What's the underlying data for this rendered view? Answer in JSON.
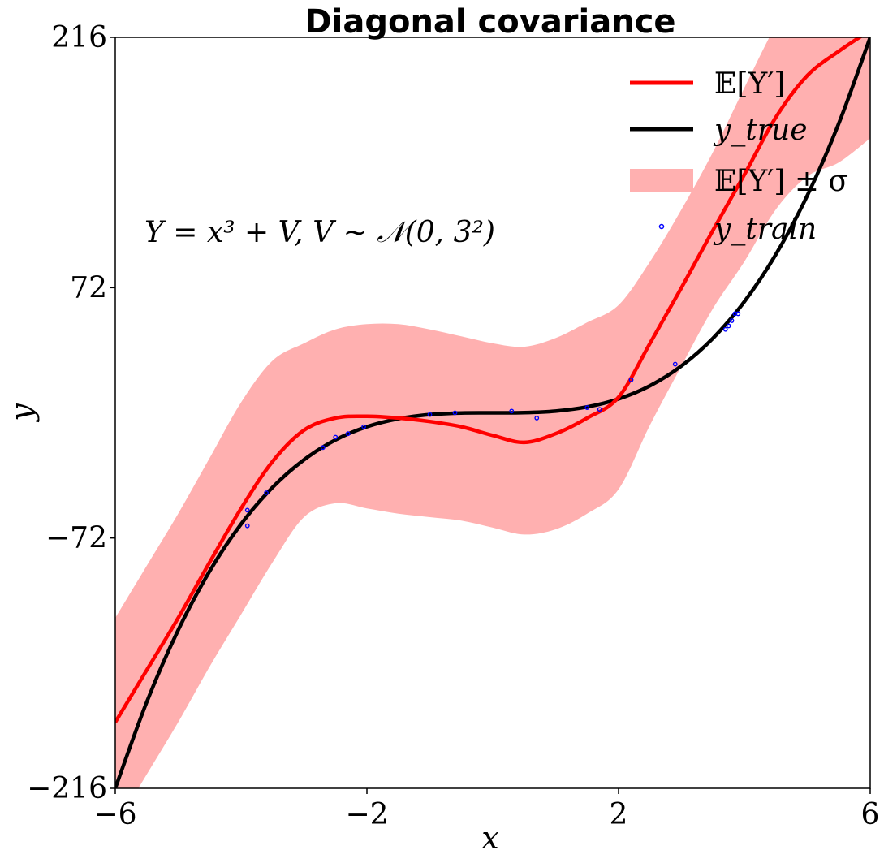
{
  "chart_data": {
    "type": "line",
    "title": "Diagonal covariance",
    "xlabel": "x",
    "ylabel": "y",
    "xlim": [
      -6,
      6
    ],
    "ylim": [
      -216,
      216
    ],
    "xticks": [
      -6,
      -2,
      2,
      6
    ],
    "xtick_labels": [
      "−6",
      "−2",
      "2",
      "6"
    ],
    "yticks": [
      -216,
      -72,
      72,
      216
    ],
    "ytick_labels": [
      "−216",
      "−72",
      "72",
      "216"
    ],
    "grid": false,
    "legend_position": "top-right",
    "annotation": "Y = x³ + V,  V ∼ 𝒩(0, 3²)",
    "legend": {
      "mean": "𝔼[Y′]",
      "true": "y_true",
      "band": "𝔼[Y′] ± σ",
      "train": "y_train"
    },
    "colors": {
      "mean": "#ff0000",
      "true": "#000000",
      "band": "#ffb0b0",
      "train": "#0000ff"
    },
    "series": [
      {
        "name": "𝔼[Y′]",
        "x": [
          -6,
          -5.5,
          -5,
          -4.5,
          -4,
          -3.5,
          -3,
          -2.5,
          -2,
          -1.5,
          -1,
          -0.5,
          0,
          0.5,
          1,
          1.5,
          2,
          2.5,
          3,
          3.5,
          4,
          4.5,
          5,
          5.5,
          6
        ],
        "y": [
          -178,
          -148,
          -118,
          -86,
          -55,
          -28,
          -10,
          -3,
          -2,
          -3,
          -5,
          -8,
          -13,
          -17,
          -12,
          -3,
          9,
          40,
          72,
          105,
          137,
          170,
          194,
          208,
          220
        ]
      },
      {
        "name": "y_true",
        "x": [
          -6,
          -5.5,
          -5,
          -4.5,
          -4,
          -3.5,
          -3,
          -2.5,
          -2,
          -1.5,
          -1,
          -0.5,
          0,
          0.5,
          1,
          1.5,
          2,
          2.5,
          3,
          3.5,
          4,
          4.5,
          5,
          5.5,
          6
        ],
        "y": [
          -216,
          -166.4,
          -125,
          -91.1,
          -64,
          -42.9,
          -27,
          -15.6,
          -8,
          -3.4,
          -1,
          -0.1,
          0,
          0.1,
          1,
          3.4,
          8,
          15.6,
          27,
          42.9,
          64,
          91.1,
          125,
          166.4,
          216
        ]
      }
    ],
    "band": {
      "name": "𝔼[Y′] ± σ",
      "x": [
        -6,
        -5.5,
        -5,
        -4.5,
        -4,
        -3.5,
        -3,
        -2.5,
        -2,
        -1.5,
        -1,
        -0.5,
        0,
        0.5,
        1,
        1.5,
        2,
        2.5,
        3,
        3.5,
        4,
        4.5,
        5,
        5.5,
        6
      ],
      "upper": [
        -118,
        -88,
        -58,
        -26,
        6,
        30,
        40,
        48,
        51,
        51,
        48,
        44,
        40,
        38,
        43,
        52,
        62,
        87,
        117,
        150,
        187,
        223,
        252,
        272,
        282
      ],
      "lower": [
        -238,
        -208,
        -178,
        -146,
        -116,
        -86,
        -60,
        -52,
        -55,
        -58,
        -60,
        -62,
        -66,
        -70,
        -67,
        -58,
        -44,
        -7,
        27,
        60,
        87,
        117,
        136,
        144,
        158
      ]
    },
    "scatter": {
      "name": "y_train",
      "x": [
        -3.9,
        -3.9,
        -3.6,
        -2.7,
        -2.5,
        -2.3,
        -2.05,
        -1.0,
        -0.6,
        0.3,
        0.7,
        1.5,
        1.7,
        2.2,
        2.9,
        3.7,
        3.75,
        3.8,
        3.85,
        3.9
      ],
      "y": [
        -56,
        -65,
        -46,
        -20,
        -14,
        -12,
        -8,
        -1,
        0,
        1,
        -3,
        3,
        2,
        19,
        28,
        48,
        50,
        53,
        57,
        57
      ]
    }
  }
}
